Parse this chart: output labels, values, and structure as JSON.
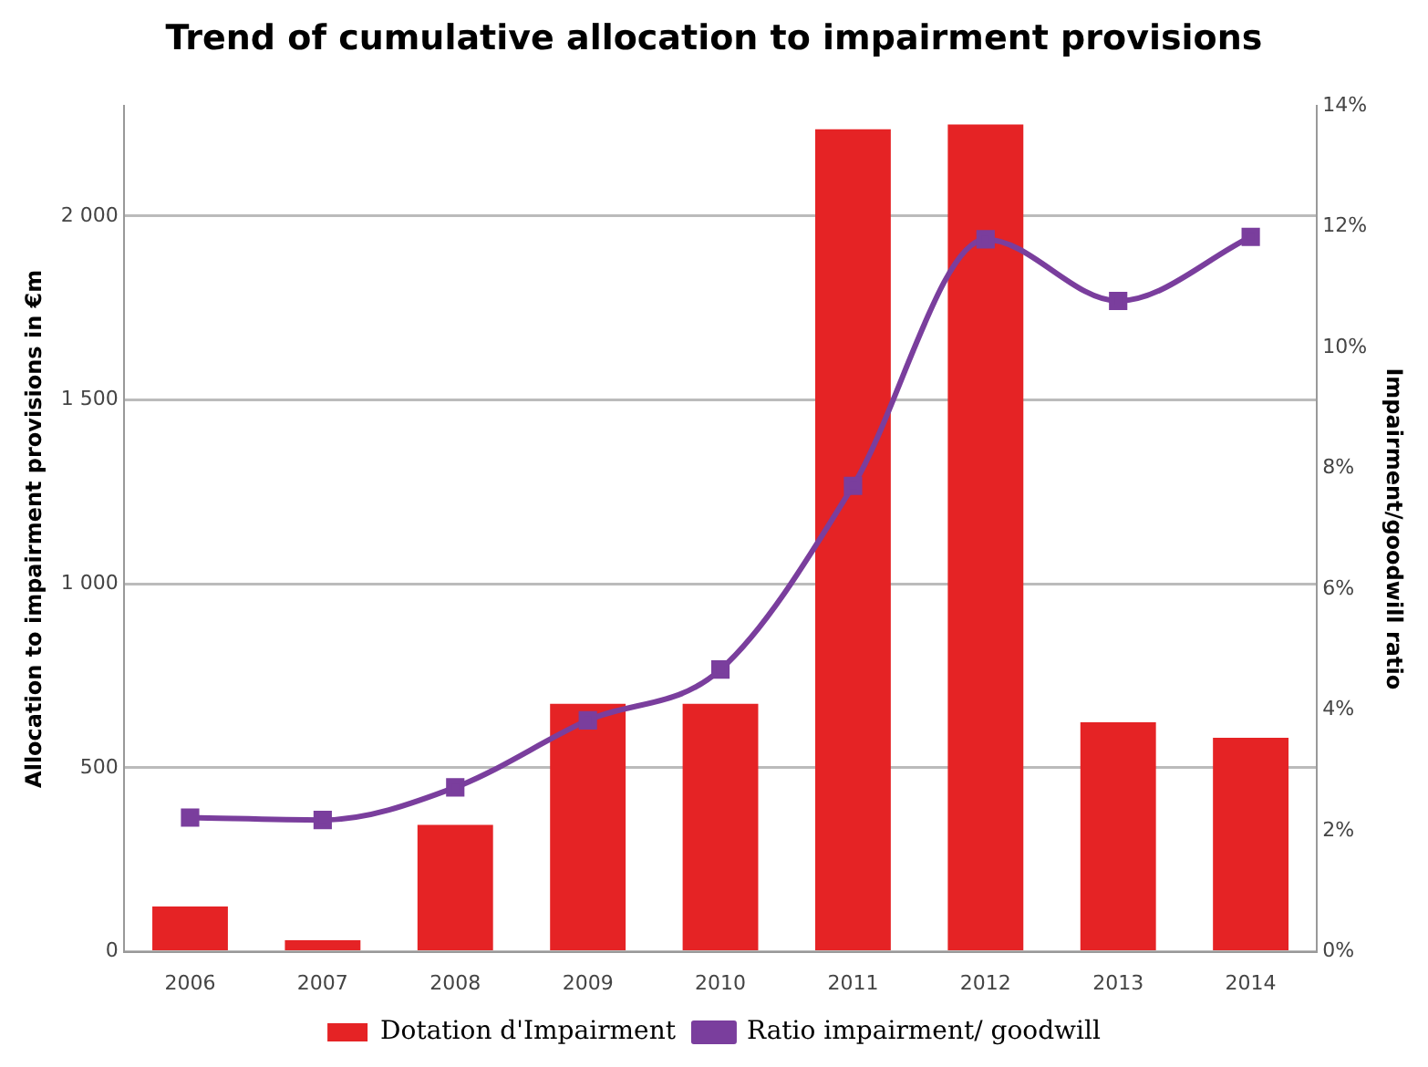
{
  "chart_data": {
    "type": "bar",
    "title": "Trend of cumulative allocation to impairment provisions",
    "ylabel": "Allocation to impairment provisions in €m",
    "y2label": "Impairment/goodwill ratio",
    "categories": [
      "2006",
      "2007",
      "2008",
      "2009",
      "2010",
      "2011",
      "2012",
      "2013",
      "2014"
    ],
    "series": [
      {
        "name": "Dotation d'Impairment",
        "color": "#e52325",
        "values": [
          123,
          31,
          345,
          674,
          674,
          2236,
          2249,
          624,
          582
        ]
      },
      {
        "name": "Ratio impairment/ goodwill",
        "type": "line",
        "axis": "y2",
        "color": "#7a3e9d",
        "marker": "square",
        "values": [
          2.22,
          2.18,
          2.72,
          3.83,
          4.67,
          7.71,
          11.79,
          10.77,
          11.83
        ]
      }
    ],
    "ylim": [
      0,
      2300
    ],
    "yticks": [
      0,
      500,
      {
        "value": 1000,
        "label": "1 000"
      },
      {
        "value": 1500,
        "label": "1 500"
      },
      {
        "value": 2000,
        "label": "2 000"
      }
    ],
    "y2lim": [
      0,
      14
    ],
    "y2ticks": [
      {
        "value": 0,
        "label": "0%"
      },
      {
        "value": 2,
        "label": "2%"
      },
      {
        "value": 4,
        "label": "4%"
      },
      {
        "value": 6,
        "label": "6%"
      },
      {
        "value": 8,
        "label": "8%"
      },
      {
        "value": 10,
        "label": "10%"
      },
      {
        "value": 12,
        "label": "12%"
      },
      {
        "value": 14,
        "label": "14%"
      }
    ],
    "grid": "y",
    "legend": "bottom"
  }
}
